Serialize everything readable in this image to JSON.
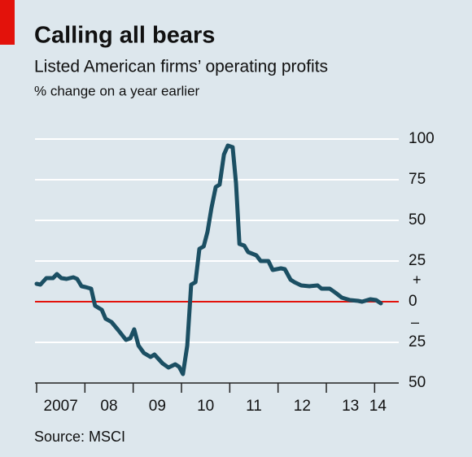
{
  "chart_data": {
    "type": "line",
    "title": "Calling all bears",
    "subtitle": "Listed American firms’ operating profits",
    "ylabel": "% change on a year earlier",
    "source": "Source: MSCI",
    "annotations": [
      "+",
      "–"
    ],
    "series": [
      {
        "color": "#1b4f63",
        "x": [
          2007.0,
          2007.08,
          2007.2,
          2007.34,
          2007.42,
          2007.51,
          2007.62,
          2007.76,
          2007.84,
          2007.93,
          2008.01,
          2008.13,
          2008.21,
          2008.35,
          2008.43,
          2008.55,
          2008.69,
          2008.85,
          2008.94,
          2009.02,
          2009.11,
          2009.22,
          2009.36,
          2009.44,
          2009.61,
          2009.73,
          2009.87,
          2009.95,
          2010.03,
          2010.12,
          2010.2,
          2010.29,
          2010.37,
          2010.46,
          2010.54,
          2010.62,
          2010.71,
          2010.79,
          2010.88,
          2010.96,
          2011.06,
          2011.13,
          2011.2,
          2011.3,
          2011.38,
          2011.55,
          2011.64,
          2011.8,
          2011.89,
          2012.06,
          2012.14,
          2012.26,
          2012.34,
          2012.48,
          2012.65,
          2012.82,
          2012.9,
          2013.07,
          2013.19,
          2013.32,
          2013.49,
          2013.66,
          2013.74,
          2013.91,
          2014.03,
          2014.13
        ],
        "values": [
          11,
          10.5,
          14.5,
          14.5,
          17,
          14.5,
          14,
          15,
          14,
          9.5,
          9,
          8,
          -2.5,
          -5,
          -10.5,
          -12.5,
          -17.5,
          -23.5,
          -22.5,
          -17,
          -27,
          -31.5,
          -34,
          -32.5,
          -38,
          -40.5,
          -38.5,
          -40,
          -44.5,
          -27,
          10.5,
          12,
          32.5,
          34,
          43,
          57.5,
          70.5,
          72,
          90.5,
          96,
          95,
          73,
          35.5,
          34.5,
          30.5,
          28.5,
          25,
          25,
          19.5,
          20.5,
          20,
          13.5,
          12,
          10,
          9.5,
          10,
          8,
          8,
          5.5,
          2.5,
          1,
          0.5,
          0,
          1.5,
          1,
          -1
        ]
      }
    ],
    "xlim": [
      2007,
      2014.5
    ],
    "xticks": [
      {
        "value": 2007,
        "label": "2007"
      },
      {
        "value": 2008,
        "label": "08"
      },
      {
        "value": 2009,
        "label": "09"
      },
      {
        "value": 2010,
        "label": "10"
      },
      {
        "value": 2011,
        "label": "11"
      },
      {
        "value": 2012,
        "label": "12"
      },
      {
        "value": 2013,
        "label": "13"
      },
      {
        "value": 2014,
        "label": "14"
      }
    ],
    "ylim": [
      -50,
      100
    ],
    "yticks": [
      {
        "value": -50,
        "label": "50"
      },
      {
        "value": -25,
        "label": "25"
      },
      0,
      25,
      50,
      75,
      100
    ],
    "grid": true,
    "zero_line_color": "#e3120b"
  }
}
